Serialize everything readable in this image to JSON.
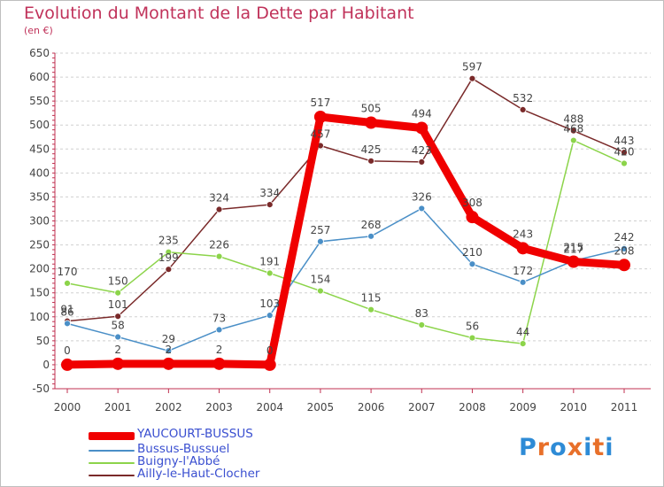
{
  "title": "Evolution du Montant de la Dette par Habitant",
  "subtitle": "(en €)",
  "logo": {
    "text": "Proxiti",
    "letter_colors": [
      "#2e8bd6",
      "#e8702a",
      "#2e8bd6",
      "#e8702a",
      "#2e8bd6",
      "#e8702a",
      "#2e8bd6"
    ]
  },
  "chart_data": {
    "type": "line",
    "x": [
      "2000",
      "2001",
      "2002",
      "2003",
      "2004",
      "2005",
      "2006",
      "2007",
      "2008",
      "2009",
      "2010",
      "2011"
    ],
    "ylim": [
      -50,
      650
    ],
    "yticks": [
      -50,
      0,
      50,
      100,
      150,
      200,
      250,
      300,
      350,
      400,
      450,
      500,
      550,
      600,
      650
    ],
    "grid": "horizontal dashed",
    "legend_position": "bottom-left",
    "series": [
      {
        "name": "YAUCOURT-BUSSUS",
        "color": "#f00000",
        "values": [
          0,
          2,
          2,
          2,
          0,
          517,
          505,
          494,
          308,
          243,
          215,
          208
        ]
      },
      {
        "name": "Bussus-Bussuel",
        "color": "#4a8fc7",
        "values": [
          86,
          58,
          29,
          73,
          103,
          257,
          268,
          326,
          210,
          172,
          217,
          242
        ]
      },
      {
        "name": "Buigny-l'Abbé",
        "color": "#8cd44a",
        "values": [
          170,
          150,
          235,
          226,
          191,
          154,
          115,
          83,
          56,
          44,
          468,
          420
        ]
      },
      {
        "name": "Ailly-le-Haut-Clocher",
        "color": "#7a2a2a",
        "values": [
          91,
          101,
          199,
          324,
          334,
          457,
          425,
          423,
          597,
          532,
          488,
          443
        ]
      }
    ]
  }
}
